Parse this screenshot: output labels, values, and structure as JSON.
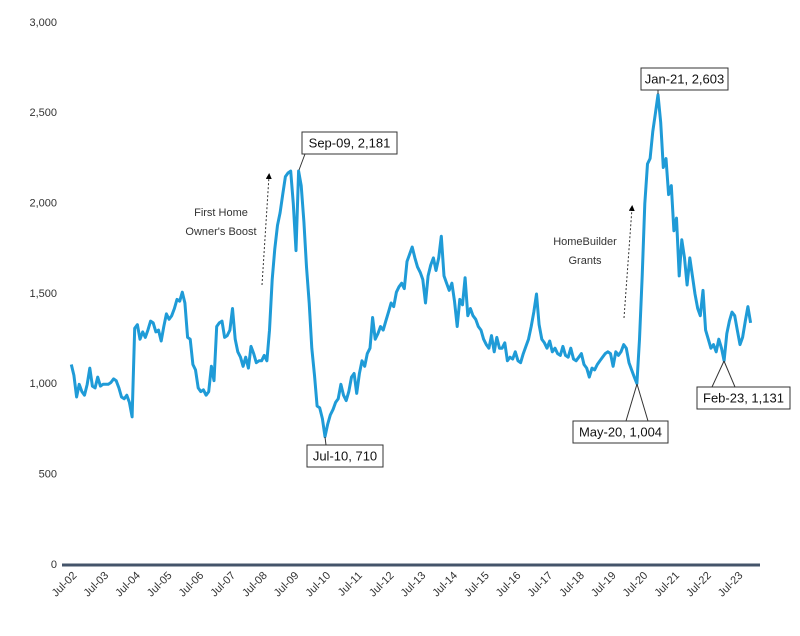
{
  "chart_data": {
    "type": "line",
    "categories": [
      "Jul-02",
      null,
      null,
      null,
      null,
      null,
      null,
      null,
      null,
      null,
      null,
      null,
      "Jul-03",
      null,
      null,
      null,
      null,
      null,
      null,
      null,
      null,
      null,
      null,
      null,
      "Jul-04",
      null,
      null,
      null,
      null,
      null,
      null,
      null,
      null,
      null,
      null,
      null,
      "Jul-05",
      null,
      null,
      null,
      null,
      null,
      null,
      null,
      null,
      null,
      null,
      null,
      "Jul-06",
      null,
      null,
      null,
      null,
      null,
      null,
      null,
      null,
      null,
      null,
      null,
      "Jul-07",
      null,
      null,
      null,
      null,
      null,
      null,
      null,
      null,
      null,
      null,
      null,
      "Jul-08",
      null,
      null,
      null,
      null,
      null,
      null,
      null,
      null,
      null,
      null,
      null,
      "Jul-09",
      null,
      null,
      null,
      null,
      null,
      null,
      null,
      null,
      null,
      null,
      null,
      "Jul-10",
      null,
      null,
      null,
      null,
      null,
      null,
      null,
      null,
      null,
      null,
      null,
      "Jul-11",
      null,
      null,
      null,
      null,
      null,
      null,
      null,
      null,
      null,
      null,
      null,
      "Jul-12",
      null,
      null,
      null,
      null,
      null,
      null,
      null,
      null,
      null,
      null,
      null,
      "Jul-13",
      null,
      null,
      null,
      null,
      null,
      null,
      null,
      null,
      null,
      null,
      null,
      "Jul-14",
      null,
      null,
      null,
      null,
      null,
      null,
      null,
      null,
      null,
      null,
      null,
      "Jul-15",
      null,
      null,
      null,
      null,
      null,
      null,
      null,
      null,
      null,
      null,
      null,
      "Jul-16",
      null,
      null,
      null,
      null,
      null,
      null,
      null,
      null,
      null,
      null,
      null,
      "Jul-17",
      null,
      null,
      null,
      null,
      null,
      null,
      null,
      null,
      null,
      null,
      null,
      "Jul-18",
      null,
      null,
      null,
      null,
      null,
      null,
      null,
      null,
      null,
      null,
      null,
      "Jul-19",
      null,
      null,
      null,
      null,
      null,
      null,
      null,
      null,
      null,
      null,
      null,
      "Jul-20",
      null,
      null,
      null,
      null,
      null,
      null,
      null,
      null,
      null,
      null,
      null,
      "Jul-21",
      null,
      null,
      null,
      null,
      null,
      null,
      null,
      null,
      null,
      null,
      null,
      "Jul-22",
      null,
      null,
      null,
      null,
      null,
      null,
      null,
      null,
      null,
      null,
      null,
      "Jul-23",
      null,
      null,
      null,
      null,
      null
    ],
    "values": [
      1110,
      1050,
      930,
      1000,
      960,
      940,
      1000,
      1090,
      990,
      980,
      1040,
      990,
      1000,
      1000,
      1000,
      1010,
      1030,
      1020,
      980,
      930,
      920,
      940,
      900,
      820,
      1310,
      1330,
      1250,
      1290,
      1260,
      1300,
      1350,
      1340,
      1290,
      1300,
      1240,
      1320,
      1390,
      1360,
      1380,
      1420,
      1470,
      1460,
      1510,
      1450,
      1260,
      1250,
      1110,
      1080,
      980,
      960,
      970,
      940,
      960,
      1100,
      1020,
      1320,
      1340,
      1350,
      1260,
      1270,
      1300,
      1420,
      1250,
      1180,
      1150,
      1100,
      1150,
      1090,
      1210,
      1170,
      1120,
      1130,
      1130,
      1160,
      1130,
      1300,
      1580,
      1750,
      1880,
      1950,
      2050,
      2150,
      2170,
      2180,
      2000,
      1740,
      2181,
      2100,
      1900,
      1650,
      1450,
      1200,
      1050,
      880,
      870,
      810,
      710,
      780,
      830,
      860,
      900,
      920,
      1000,
      940,
      910,
      960,
      1040,
      1060,
      950,
      1060,
      1130,
      1100,
      1170,
      1200,
      1370,
      1250,
      1280,
      1320,
      1300,
      1350,
      1400,
      1450,
      1430,
      1510,
      1540,
      1560,
      1530,
      1680,
      1720,
      1760,
      1700,
      1650,
      1620,
      1580,
      1450,
      1600,
      1660,
      1700,
      1630,
      1700,
      1820,
      1600,
      1560,
      1520,
      1560,
      1460,
      1320,
      1470,
      1440,
      1590,
      1380,
      1420,
      1380,
      1360,
      1320,
      1300,
      1250,
      1220,
      1200,
      1270,
      1180,
      1260,
      1200,
      1200,
      1230,
      1130,
      1150,
      1140,
      1180,
      1130,
      1120,
      1170,
      1210,
      1250,
      1320,
      1400,
      1500,
      1330,
      1250,
      1230,
      1200,
      1240,
      1180,
      1200,
      1170,
      1160,
      1210,
      1160,
      1150,
      1200,
      1140,
      1130,
      1150,
      1170,
      1110,
      1090,
      1040,
      1090,
      1080,
      1110,
      1130,
      1150,
      1170,
      1180,
      1170,
      1100,
      1180,
      1160,
      1180,
      1220,
      1200,
      1120,
      1080,
      1040,
      1004,
      1250,
      1600,
      2000,
      2220,
      2250,
      2400,
      2500,
      2603,
      2450,
      2200,
      2250,
      2050,
      2100,
      1850,
      1920,
      1600,
      1800,
      1700,
      1550,
      1700,
      1600,
      1500,
      1420,
      1380,
      1520,
      1300,
      1250,
      1200,
      1220,
      1180,
      1250,
      1200,
      1131,
      1280,
      1350,
      1400,
      1380,
      1300,
      1220,
      1260,
      1350,
      1430,
      1340
    ],
    "color": "#1f9bd7",
    "ylim": [
      0,
      3000
    ],
    "yticks": [
      0,
      500,
      {
        "value": 1000,
        "label": "1,000"
      },
      {
        "value": 1500,
        "label": "1,500"
      },
      {
        "value": 2000,
        "label": "2,000"
      },
      {
        "value": 2500,
        "label": "2,500"
      },
      {
        "value": 3000,
        "label": "3,000"
      }
    ],
    "grid": false,
    "annotations": [
      {
        "text": "Sep-09, 2,181"
      },
      {
        "text": "Jul-10, 710"
      },
      {
        "text": "Jan-21, 2,603"
      },
      {
        "text": "May-20, 1,004"
      },
      {
        "text": "Feb-23, 1,131"
      },
      {
        "text": [
          "First Home",
          "Owner's Boost"
        ]
      },
      {
        "text": [
          "HomeBuilder",
          "Grants"
        ]
      }
    ]
  }
}
